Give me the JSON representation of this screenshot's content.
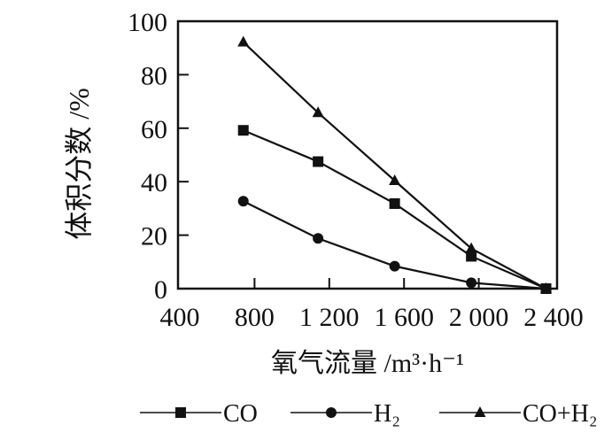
{
  "chart_data": {
    "type": "line",
    "xlabel": "氧气流量 /m³·h⁻¹",
    "ylabel": "体积分数 /%",
    "xlim": [
      400,
      2400
    ],
    "ylim": [
      0,
      100
    ],
    "xticks": [
      400,
      800,
      1200,
      1600,
      2000,
      2400
    ],
    "xtick_labels": [
      "400",
      "800",
      "1 200",
      "1 600",
      "2 000",
      "2 400"
    ],
    "yticks": [
      0,
      20,
      40,
      60,
      80,
      100
    ],
    "ytick_labels": [
      "0",
      "20",
      "40",
      "60",
      "80",
      "100"
    ],
    "grid": false,
    "legend_position": "bottom",
    "x": [
      740,
      1140,
      1550,
      1960,
      2360
    ],
    "series": [
      {
        "name": "CO",
        "marker": "square",
        "values": [
          59.2,
          47.5,
          31.8,
          12.1,
          0
        ]
      },
      {
        "name": "H₂",
        "marker": "circle",
        "values": [
          32.7,
          18.8,
          8.4,
          2.2,
          0
        ]
      },
      {
        "name": "CO+H₂",
        "marker": "triangle",
        "values": [
          92.2,
          65.8,
          40.4,
          15.0,
          0
        ]
      }
    ],
    "color": "#111111"
  }
}
